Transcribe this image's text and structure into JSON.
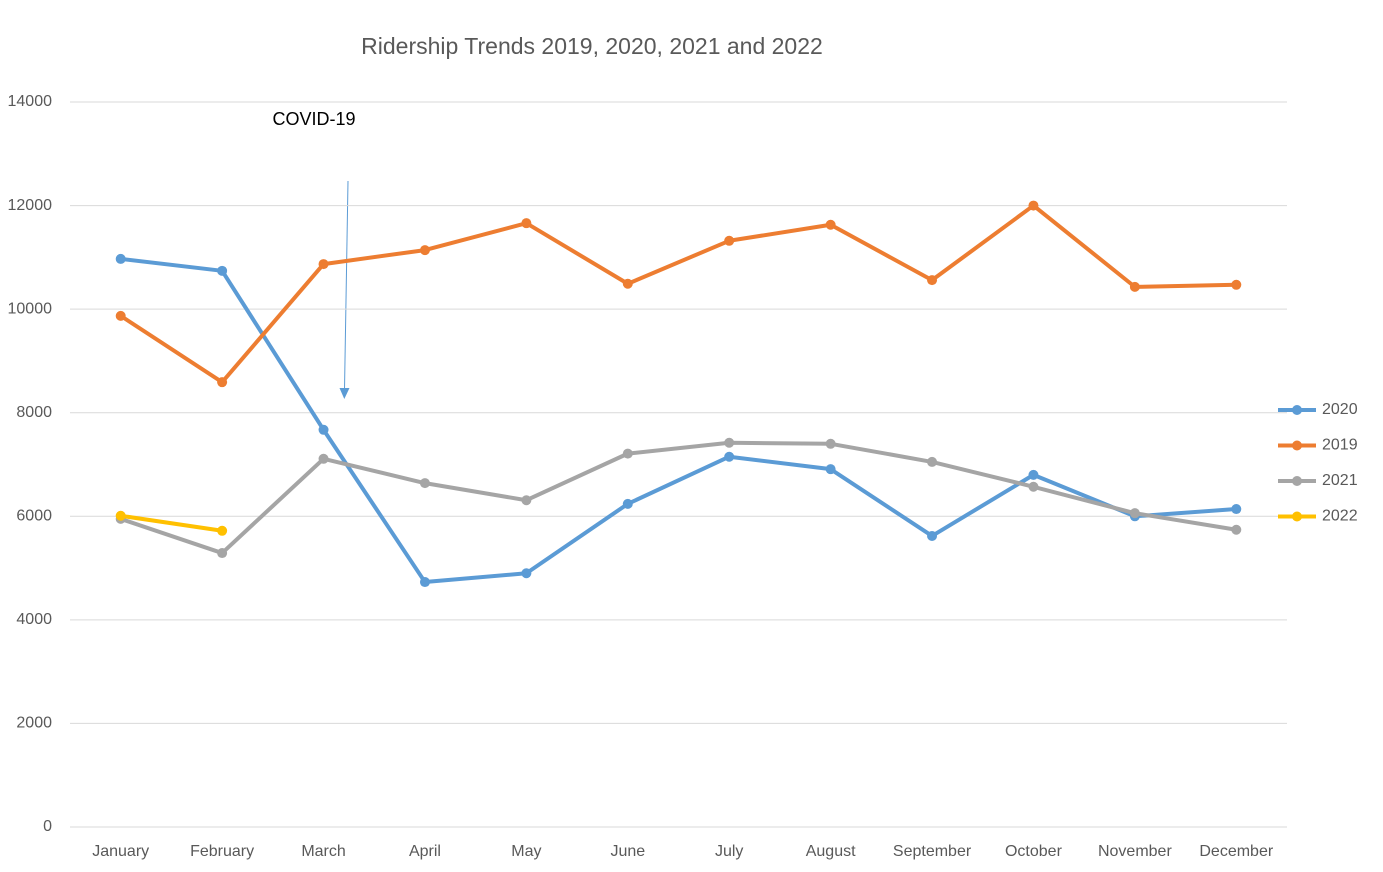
{
  "chart_data": {
    "type": "line",
    "title": "Ridership Trends 2019, 2020, 2021 and 2022",
    "annotation": "COVID-19",
    "categories": [
      "January",
      "February",
      "March",
      "April",
      "May",
      "June",
      "July",
      "August",
      "September",
      "October",
      "November",
      "December"
    ],
    "series": [
      {
        "name": "2020",
        "color": "#5b9bd5",
        "values": [
          10970,
          10740,
          7670,
          4730,
          4900,
          6240,
          7150,
          6910,
          5620,
          6800,
          6000,
          6140
        ]
      },
      {
        "name": "2019",
        "color": "#ed7d31",
        "values": [
          9870,
          8590,
          10870,
          11140,
          11660,
          10490,
          11320,
          11630,
          10560,
          12000,
          10430,
          10470
        ]
      },
      {
        "name": "2021",
        "color": "#a5a5a5",
        "values": [
          5950,
          5290,
          7110,
          6640,
          6310,
          7210,
          7420,
          7400,
          7050,
          6570,
          6060,
          5740
        ]
      },
      {
        "name": "2022",
        "color": "#ffc000",
        "values": [
          6010,
          5720,
          null,
          null,
          null,
          null,
          null,
          null,
          null,
          null,
          null,
          null
        ]
      }
    ],
    "ylim": [
      0,
      14000
    ],
    "yticks": [
      0,
      2000,
      4000,
      6000,
      8000,
      10000,
      12000,
      14000
    ],
    "grid": true,
    "legend": "right"
  }
}
